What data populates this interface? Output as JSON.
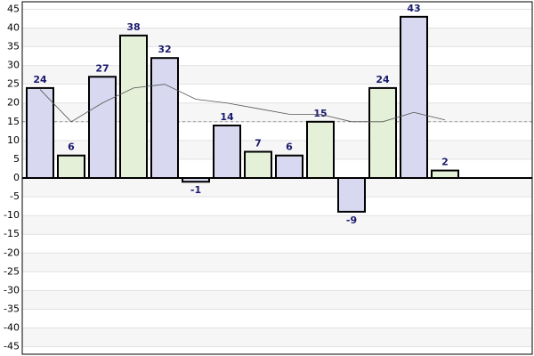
{
  "chart_data": {
    "type": "bar",
    "categories": [
      null,
      null,
      null,
      null,
      null,
      null,
      null,
      null,
      null,
      null,
      null,
      null,
      null,
      null
    ],
    "series": [
      {
        "type": "bar",
        "values": [
          24,
          6,
          27,
          38,
          32,
          -1,
          14,
          7,
          6,
          15,
          -9,
          24,
          43,
          2
        ],
        "colors": [
          "#d8d8f0",
          "#e4f0d8",
          "#d8d8f0",
          "#e4f0d8",
          "#d8d8f0",
          "#d8d8f0",
          "#d8d8f0",
          "#e4f0d8",
          "#d8d8f0",
          "#e4f0d8",
          "#d8d8f0",
          "#e4f0d8",
          "#d8d8f0",
          "#e4f0d8"
        ]
      },
      {
        "type": "line",
        "color": "#555555",
        "values": [
          23.6,
          15,
          20,
          24,
          25,
          21,
          20,
          18.5,
          17,
          17,
          15,
          15,
          17.5,
          15.5
        ]
      }
    ],
    "average_line": 15,
    "ylim": [
      -47,
      47
    ],
    "yticks": [
      -45,
      -40,
      -35,
      -30,
      -25,
      -20,
      -15,
      -10,
      -5,
      0,
      5,
      10,
      15,
      20,
      25,
      30,
      35,
      40,
      45
    ],
    "grid": true
  }
}
